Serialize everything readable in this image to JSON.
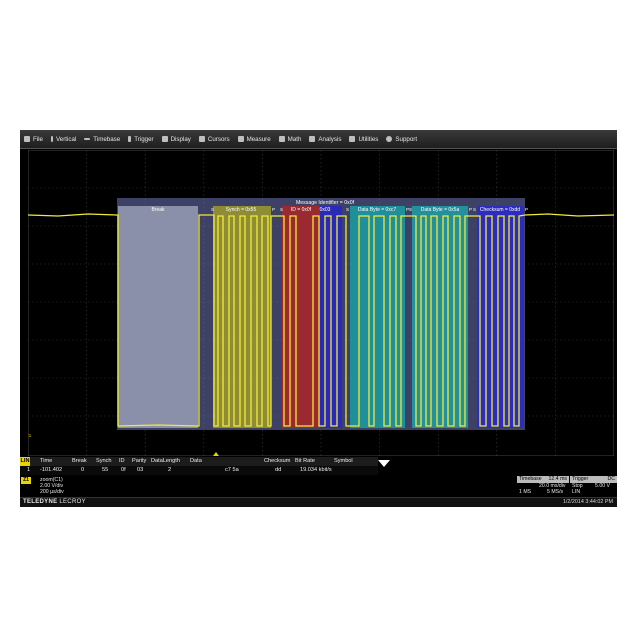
{
  "menu": {
    "items": [
      {
        "label": "File",
        "icon": "file-icon"
      },
      {
        "label": "Vertical",
        "icon": "vertical-icon"
      },
      {
        "label": "Timebase",
        "icon": "timebase-icon"
      },
      {
        "label": "Trigger",
        "icon": "trigger-icon"
      },
      {
        "label": "Display",
        "icon": "display-icon"
      },
      {
        "label": "Cursors",
        "icon": "cursors-icon"
      },
      {
        "label": "Measure",
        "icon": "measure-icon"
      },
      {
        "label": "Math",
        "icon": "math-icon"
      },
      {
        "label": "Analysis",
        "icon": "analysis-icon"
      },
      {
        "label": "Utilities",
        "icon": "utilities-icon"
      },
      {
        "label": "Support",
        "icon": "support-icon"
      }
    ]
  },
  "decode": {
    "message_label": "Message Identifier = 0x0f",
    "break_label": "Break",
    "synch_label": "Synch = 0x55",
    "id_label": "ID = 0x0f",
    "parity_label": "0x03",
    "data1_label": "Data Byte = 0xc7",
    "data2_label": "Data Byte = 0x5a",
    "checksum_label": "Checksum = 0xdd",
    "s_marker": "S",
    "p_marker": "P",
    "channel_marker": "Z1"
  },
  "colors": {
    "trace": "#f2ea3a",
    "break": "#8a8faa",
    "synch": "#9c9b2e",
    "id": "#9a2a30",
    "parity": "#2a2ab8",
    "data1": "#1f8f9a",
    "data2": "#23909a",
    "checksum": "#2d2dbd",
    "overlay": "#6e76b8"
  },
  "table": {
    "tag": "LIN",
    "headers": [
      "Time",
      "Break",
      "Synch",
      "ID",
      "Parity",
      "DataLength",
      "Data",
      "Checksum",
      "Bit Rate",
      "Symbol"
    ],
    "row": {
      "index": "1",
      "time": "-101.402",
      "break": "0",
      "synch": "55",
      "id": "0f",
      "parity": "03",
      "datalength": "2",
      "data": "c7 5a",
      "checksum": "dd",
      "bitrate": "19.034 kbit/s",
      "symbol": ""
    }
  },
  "zoom": {
    "tag": "Z1",
    "name": "zoom(C1)",
    "vdiv": "2.00 V/div",
    "tdiv": "200 µs/div"
  },
  "timebase": {
    "title": "Timebase",
    "delay": "12.4 ms",
    "tdiv": "20.0 ms/div",
    "points": "1 MS",
    "rate": "5 MS/s",
    "trigger_title": "Trigger",
    "trigger_flag": "DC",
    "trigger_mode": "Stop",
    "trigger_level": "5.00 V",
    "trigger_type": "LIN"
  },
  "footer": {
    "brand_bold": "TELEDYNE",
    "brand_light": " LECROY",
    "datetime": "1/2/2014 3:44:02 PM"
  }
}
